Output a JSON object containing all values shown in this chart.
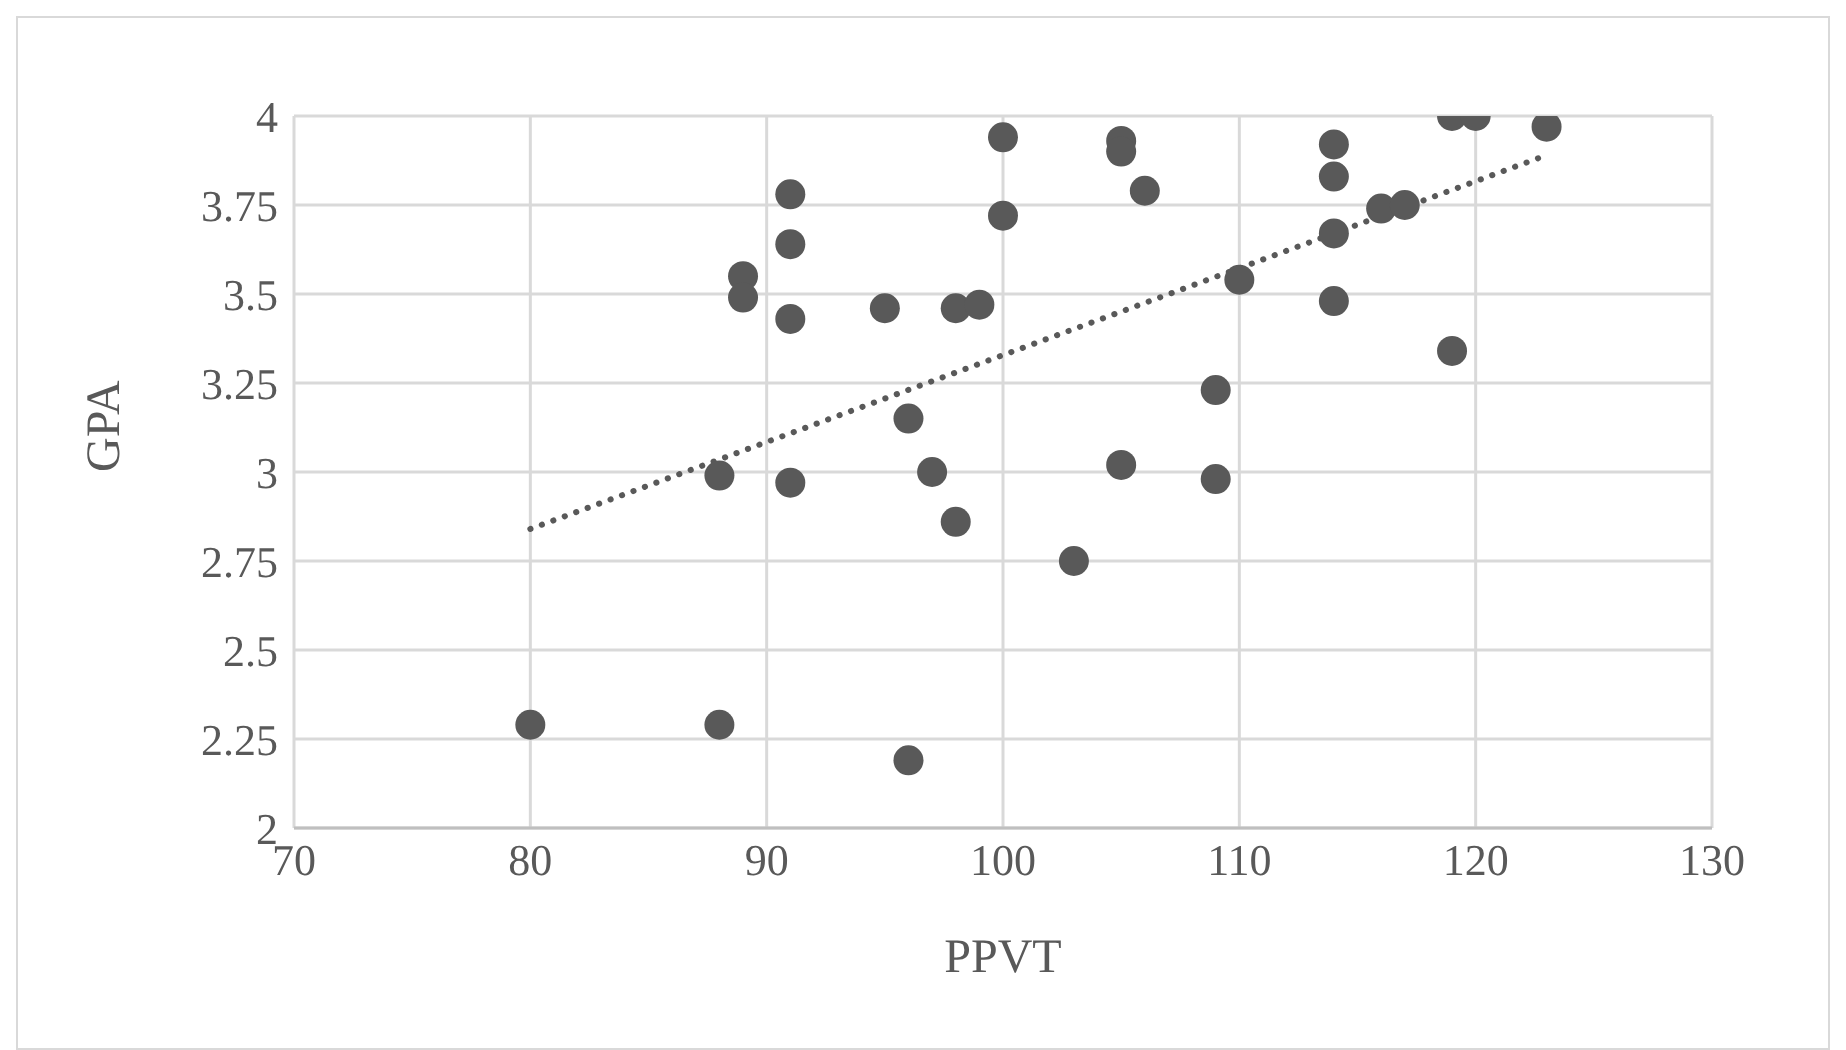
{
  "chart_data": {
    "type": "scatter",
    "xlabel": "PPVT",
    "ylabel": "GPA",
    "xlim": [
      70,
      130
    ],
    "xticks": [
      70,
      80,
      90,
      100,
      110,
      120,
      130
    ],
    "ylim": [
      2,
      4
    ],
    "yticks": [
      2,
      {
        "value": 2.25,
        "label": "2.25"
      },
      {
        "value": 2.5,
        "label": "2.5"
      },
      {
        "value": 2.75,
        "label": "2.75"
      },
      3,
      {
        "value": 3.25,
        "label": "3.25"
      },
      {
        "value": 3.5,
        "label": "3.5"
      },
      {
        "value": 3.75,
        "label": "3.75"
      },
      4
    ],
    "grid": true,
    "series": [
      {
        "type": "scatter",
        "color": "#595959",
        "marker": "circle",
        "x": [
          80,
          88,
          88,
          89,
          89,
          91,
          91,
          91,
          91,
          95,
          96,
          96,
          97,
          98,
          98,
          99,
          100,
          100,
          103,
          105,
          105,
          105,
          106,
          109,
          109,
          110,
          114,
          114,
          114,
          114,
          116,
          117,
          119,
          120,
          119,
          123
        ],
        "values": [
          2.29,
          2.29,
          2.99,
          3.55,
          3.49,
          3.78,
          3.64,
          3.43,
          2.97,
          3.46,
          3.15,
          2.19,
          3.0,
          3.46,
          2.86,
          3.47,
          3.94,
          3.72,
          2.75,
          3.93,
          3.9,
          3.02,
          3.79,
          3.23,
          2.98,
          3.54,
          3.92,
          3.83,
          3.67,
          3.48,
          3.74,
          3.75,
          4.0,
          4.0,
          3.34,
          3.97
        ]
      },
      {
        "type": "line",
        "color": "#595959",
        "marker": "none",
        "line_style": "dotted",
        "x": [
          80,
          123
        ],
        "values": [
          2.84,
          3.89
        ]
      }
    ]
  }
}
